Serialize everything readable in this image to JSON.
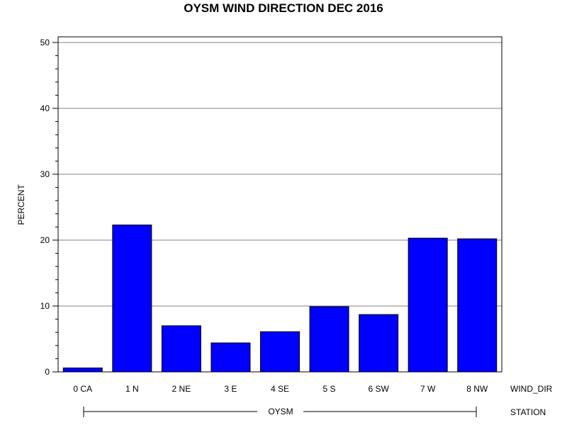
{
  "chart_data": {
    "type": "bar",
    "title": "OYSM WIND DIRECTION DEC 2016",
    "ylabel": "PERCENT",
    "xlabel": "WIND_DIR",
    "group_axis_label": "STATION",
    "group_label": "OYSM",
    "categories": [
      "0 CA",
      "1 N",
      "2 NE",
      "3 E",
      "4 SE",
      "5 S",
      "6 SW",
      "7 W",
      "8 NW"
    ],
    "values": [
      0.6,
      22.3,
      7.0,
      4.4,
      6.1,
      9.9,
      8.7,
      20.3,
      20.2
    ],
    "ylim": [
      0,
      50
    ],
    "yticks": [
      0,
      10,
      20,
      30,
      40,
      50
    ],
    "minor_ticks_per_major": 5,
    "grid": true,
    "bar_color": "#0000ff",
    "bar_stroke": "#000000",
    "grid_color": "#808080"
  }
}
